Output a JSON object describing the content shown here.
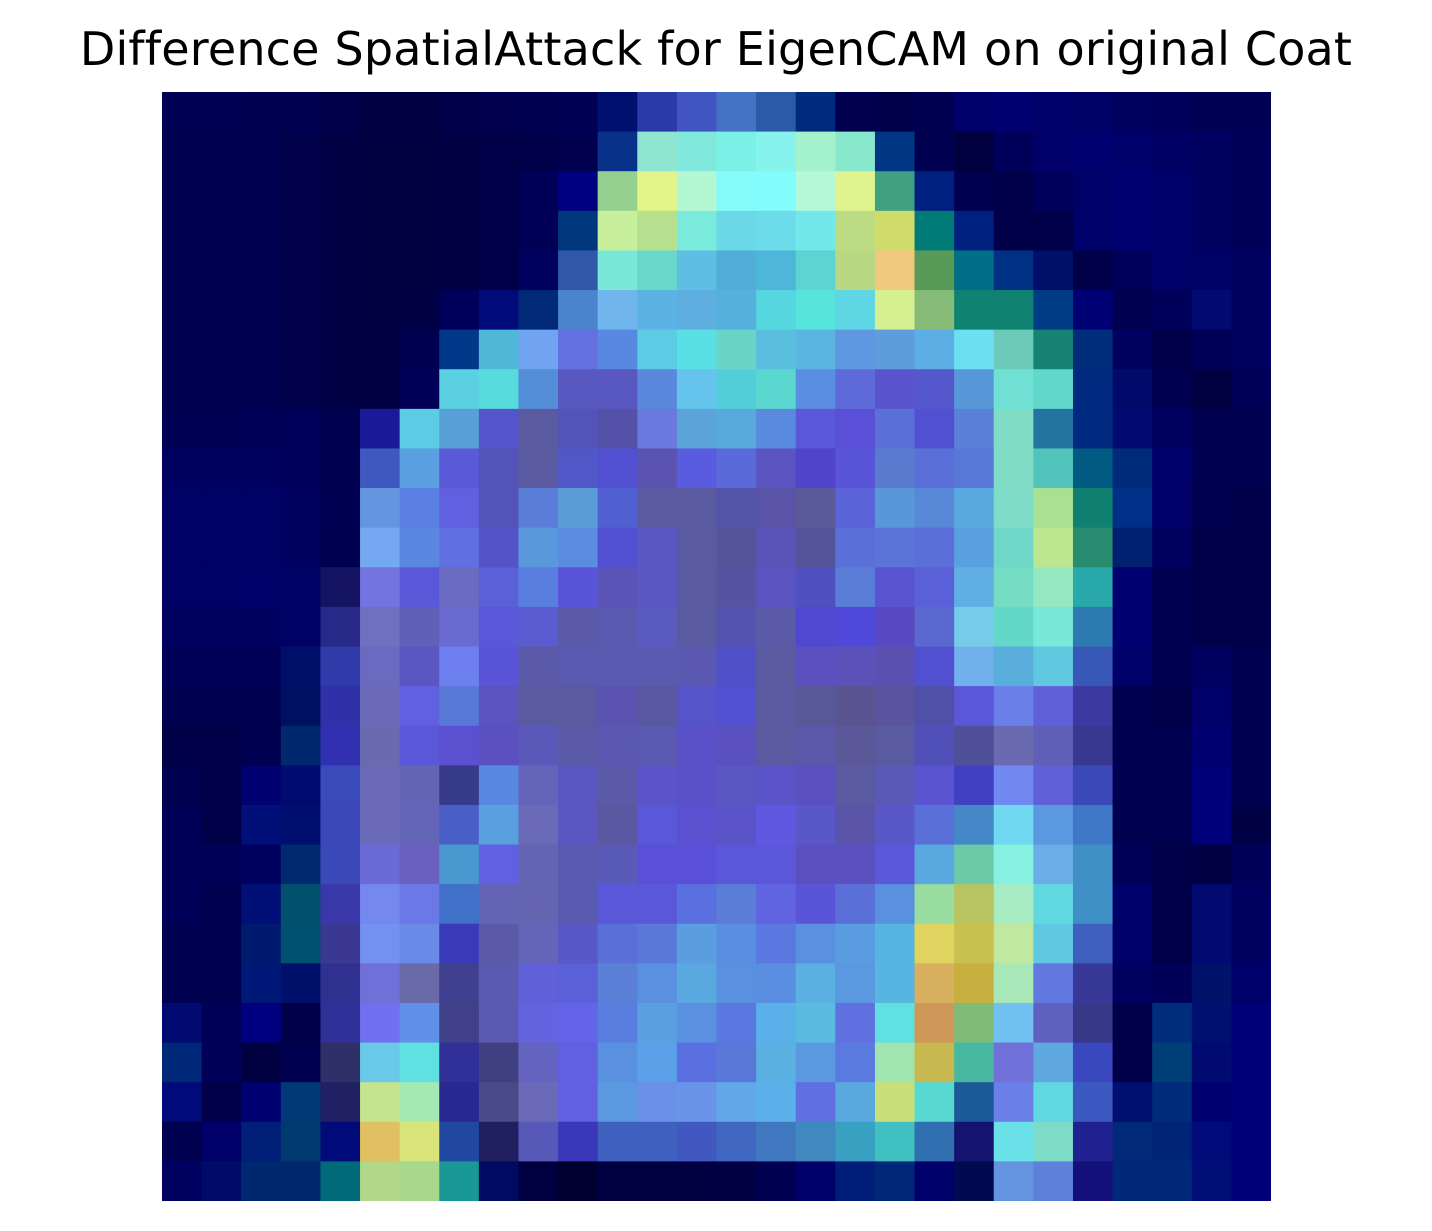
{
  "chart_data": {
    "type": "heatmap",
    "title": "Difference SpatialAttack for EigenCAM on original Coat",
    "axes_visible": false,
    "grid": false,
    "rows": 28,
    "cols": 28,
    "colormap": "jet colormap blended over grayscale image",
    "cells": [
      [
        "#000055",
        "#000055",
        "#000050",
        "#000050",
        "#00004a",
        "#000045",
        "#000045",
        "#00004a",
        "#00004f",
        "#000050",
        "#000055",
        "#00106f",
        "#2a3aa8",
        "#4055c2",
        "#4672c6",
        "#2a5aa8",
        "#002a7e",
        "#00004f",
        "#00004a",
        "#000050",
        "#00006a",
        "#000070",
        "#00006a",
        "#000066",
        "#000060",
        "#00005a",
        "#000055",
        "#000055"
      ],
      [
        "#000050",
        "#000050",
        "#000050",
        "#00004b",
        "#000045",
        "#000040",
        "#000040",
        "#000045",
        "#000048",
        "#00004a",
        "#00004f",
        "#08328a",
        "#8ee6d0",
        "#80e8dc",
        "#7af0e6",
        "#86f4ec",
        "#a4f2cc",
        "#88e8cc",
        "#003684",
        "#000050",
        "#000040",
        "#00005a",
        "#000068",
        "#000070",
        "#00006a",
        "#000064",
        "#000060",
        "#000058"
      ],
      [
        "#000050",
        "#000050",
        "#000050",
        "#00004b",
        "#000045",
        "#000040",
        "#000040",
        "#000045",
        "#000048",
        "#000058",
        "#000080",
        "#96d090",
        "#e2f48a",
        "#b2f8d2",
        "#84fafa",
        "#82fcfc",
        "#b4f8d8",
        "#e0f48e",
        "#40a080",
        "#002080",
        "#000050",
        "#000048",
        "#00005a",
        "#000068",
        "#000070",
        "#00006a",
        "#000060",
        "#000058"
      ],
      [
        "#000050",
        "#000050",
        "#000050",
        "#00004b",
        "#000045",
        "#000040",
        "#000040",
        "#000045",
        "#000048",
        "#000056",
        "#00387e",
        "#c8f09c",
        "#b6e08e",
        "#7aeadc",
        "#6ad8e6",
        "#6cdcea",
        "#72e8ea",
        "#bcdc84",
        "#d0dc6a",
        "#007a76",
        "#002080",
        "#000048",
        "#000048",
        "#00006a",
        "#000070",
        "#00006a",
        "#000060",
        "#000058"
      ],
      [
        "#000050",
        "#000050",
        "#000050",
        "#00004b",
        "#000045",
        "#000040",
        "#000040",
        "#000045",
        "#000048",
        "#00005e",
        "#3058aa",
        "#7ae8d8",
        "#68d8cc",
        "#5ebee4",
        "#52aed6",
        "#4eb6d8",
        "#5cd4d4",
        "#b8d884",
        "#f0c87e",
        "#589a58",
        "#006e86",
        "#003084",
        "#000f6a",
        "#000048",
        "#00005a",
        "#000068",
        "#000066",
        "#000060"
      ],
      [
        "#000050",
        "#000050",
        "#000050",
        "#00004b",
        "#000045",
        "#000040",
        "#000045",
        "#00005a",
        "#000a78",
        "#002a78",
        "#4a84cc",
        "#70b6ec",
        "#5cb2e2",
        "#5eaee0",
        "#56b0dc",
        "#56d6de",
        "#56e4dc",
        "#5ed6e4",
        "#d4f090",
        "#86bc78",
        "#108272",
        "#108272",
        "#003c86",
        "#000075",
        "#000050",
        "#00005a",
        "#000a70",
        "#000060"
      ],
      [
        "#000050",
        "#000050",
        "#000050",
        "#00004b",
        "#000045",
        "#000045",
        "#000050",
        "#00388a",
        "#4fb8d8",
        "#70a4f0",
        "#6470e0",
        "#5888e0",
        "#5ccce4",
        "#58e0e4",
        "#6ad4c6",
        "#5abede",
        "#5ab6de",
        "#5e98e0",
        "#5e9cdc",
        "#5caee4",
        "#6ce0f0",
        "#6ccab8",
        "#158272",
        "#002e7c",
        "#000060",
        "#000048",
        "#000058",
        "#000060"
      ],
      [
        "#000050",
        "#000050",
        "#000050",
        "#00004b",
        "#000045",
        "#000045",
        "#000058",
        "#5ad0e0",
        "#56dcdc",
        "#548ed8",
        "#5858c0",
        "#5858c0",
        "#5a88dc",
        "#64c4ec",
        "#52ced8",
        "#5ad8d0",
        "#5a8ee0",
        "#5e6ad8",
        "#5a54cc",
        "#5558cc",
        "#5898d8",
        "#70e0d4",
        "#62d8cc",
        "#002a80",
        "#000a6a",
        "#000050",
        "#000040",
        "#000058"
      ],
      [
        "#000055",
        "#000055",
        "#000058",
        "#00005a",
        "#000050",
        "#1a1a98",
        "#5ccce4",
        "#5aa0d8",
        "#5454cc",
        "#5a5aa0",
        "#5454b8",
        "#5452a8",
        "#6a78e0",
        "#5aa4da",
        "#58aadc",
        "#5a8ade",
        "#5a58d8",
        "#5a50d8",
        "#5a70d8",
        "#5050d0",
        "#5a80d8",
        "#80dcc4",
        "#2474a0",
        "#002a80",
        "#000a70",
        "#000060",
        "#000050",
        "#000050"
      ],
      [
        "#000060",
        "#000060",
        "#000060",
        "#00005c",
        "#000050",
        "#3e58c0",
        "#5aa0e0",
        "#5a5ad8",
        "#5454b8",
        "#5a5aa0",
        "#5058c8",
        "#5050d0",
        "#5a54b0",
        "#5a5ce0",
        "#5a6ad8",
        "#5a54c0",
        "#5044c8",
        "#5a54d8",
        "#5a7ad0",
        "#5a70d8",
        "#5878d8",
        "#80dcc4",
        "#52c4bc",
        "#005a82",
        "#002a7a",
        "#00006a",
        "#000050",
        "#000050"
      ],
      [
        "#000065",
        "#000065",
        "#000065",
        "#000060",
        "#000052",
        "#6496e0",
        "#5a80e4",
        "#6060e0",
        "#5454b8",
        "#5a7ed8",
        "#5a9cd8",
        "#5060d0",
        "#5a5aa0",
        "#5a5aa0",
        "#5454a8",
        "#5a54a8",
        "#5a5a9a",
        "#5a64d8",
        "#5898d8",
        "#5888d8",
        "#5aa8e0",
        "#7edcc8",
        "#aae094",
        "#108070",
        "#002f88",
        "#000068",
        "#000050",
        "#00004a"
      ],
      [
        "#000065",
        "#000065",
        "#000065",
        "#000060",
        "#000050",
        "#74a8f0",
        "#5a88e0",
        "#6070e0",
        "#5454c8",
        "#5a98dc",
        "#5a8ce0",
        "#5050d0",
        "#5a58c0",
        "#5a5aa0",
        "#54549a",
        "#5a54b8",
        "#54549a",
        "#5a70d8",
        "#5a74d8",
        "#5a70d8",
        "#58a0e0",
        "#70d8c8",
        "#bce690",
        "#288c70",
        "#002070",
        "#000060",
        "#00004a",
        "#000048"
      ],
      [
        "#000065",
        "#000065",
        "#000068",
        "#000065",
        "#141462",
        "#7474e0",
        "#5a58d8",
        "#6a6ac0",
        "#5a60d8",
        "#5a7ee0",
        "#5a54d8",
        "#5a54b8",
        "#5a58c0",
        "#5a5aa0",
        "#5454a0",
        "#5a54c0",
        "#5050c0",
        "#5a7ed8",
        "#5a54d0",
        "#5a60d8",
        "#60aee4",
        "#76dcc4",
        "#94e8c0",
        "#28a8a8",
        "#000070",
        "#000050",
        "#000048",
        "#000048"
      ],
      [
        "#000060",
        "#000060",
        "#000060",
        "#000065",
        "#282888",
        "#7070c0",
        "#6060b8",
        "#6a6ad0",
        "#5a58d8",
        "#5a5cd0",
        "#5a5aa8",
        "#5a5ab0",
        "#5a5ac0",
        "#5a5aa0",
        "#5454b0",
        "#5a5aa8",
        "#5048d0",
        "#5048d8",
        "#5a48c0",
        "#5a68d0",
        "#74cce8",
        "#64d8c8",
        "#78e8d8",
        "#2c7ab0",
        "#000070",
        "#000050",
        "#000048",
        "#00004a"
      ],
      [
        "#000058",
        "#000058",
        "#000058",
        "#00106a",
        "#303aa8",
        "#6a6ac0",
        "#5a58c0",
        "#6e80f0",
        "#5a54d8",
        "#5a5aa8",
        "#5a5ab0",
        "#5a5ab0",
        "#5a5ab0",
        "#5a58b0",
        "#5050c8",
        "#5a5aa0",
        "#5a50c0",
        "#5a52b8",
        "#5a50b0",
        "#5050d0",
        "#70b0ec",
        "#5aaedc",
        "#60c8e0",
        "#3858b8",
        "#00006a",
        "#000050",
        "#000060",
        "#000050"
      ],
      [
        "#000050",
        "#000050",
        "#000050",
        "#001060",
        "#3030a8",
        "#6a6ab8",
        "#6060e0",
        "#5878d8",
        "#5a54c0",
        "#5a5aa0",
        "#5a5aa0",
        "#5a54b0",
        "#5a58a0",
        "#5654c8",
        "#5050d0",
        "#5a5aa0",
        "#585898",
        "#5a5490",
        "#5a54a0",
        "#5050a8",
        "#5a58d8",
        "#6a80e8",
        "#6060d8",
        "#3c3aa0",
        "#000050",
        "#000048",
        "#000068",
        "#000050"
      ],
      [
        "#000048",
        "#000048",
        "#000050",
        "#00286e",
        "#3030b0",
        "#6a6ab0",
        "#5a58d8",
        "#5a50d0",
        "#5a50c0",
        "#5a58b8",
        "#5a5aa8",
        "#5a58b0",
        "#5a5ab0",
        "#5a50c8",
        "#5a50c0",
        "#5a5aa0",
        "#5a58a8",
        "#5a5898",
        "#5a5aa0",
        "#5050b8",
        "#505098",
        "#6a6ab0",
        "#6060b8",
        "#383890",
        "#000050",
        "#000050",
        "#000070",
        "#000050"
      ],
      [
        "#000050",
        "#000048",
        "#000070",
        "#000b70",
        "#3a4ab8",
        "#6a6ab8",
        "#6464b4",
        "#383a8a",
        "#5888e0",
        "#6464b8",
        "#5a58c0",
        "#5a5aa8",
        "#5a54c8",
        "#5a50c8",
        "#5a58c0",
        "#5a54c8",
        "#5a50c0",
        "#5a5aa0",
        "#5a58b8",
        "#5a54d0",
        "#4040c0",
        "#7088f0",
        "#6060d8",
        "#3a48b8",
        "#000050",
        "#000050",
        "#000078",
        "#000050"
      ],
      [
        "#000058",
        "#000048",
        "#001078",
        "#000f6e",
        "#3a48b8",
        "#6a6ab8",
        "#6464b8",
        "#4a60c8",
        "#5aa0e0",
        "#6a6ab8",
        "#5a58c0",
        "#5a58a0",
        "#5a58d8",
        "#5a50d0",
        "#5a54c8",
        "#6058e0",
        "#5a58c8",
        "#5a54a8",
        "#5a58c8",
        "#5a70d8",
        "#4488c8",
        "#70d8f0",
        "#5a98e0",
        "#4078c8",
        "#000050",
        "#000050",
        "#00007a",
        "#000045"
      ],
      [
        "#000058",
        "#000058",
        "#000060",
        "#002a70",
        "#3a48b8",
        "#6a6ad8",
        "#6a60c0",
        "#4a98d0",
        "#6060e0",
        "#6464b4",
        "#5a5ab0",
        "#5a5ab8",
        "#5a50d8",
        "#5a50d8",
        "#5a58d8",
        "#5a58d8",
        "#5a50c0",
        "#5a50c0",
        "#5a58d8",
        "#5aa8e0",
        "#6ccaa8",
        "#88f0e0",
        "#6aaee8",
        "#4090c8",
        "#000058",
        "#000048",
        "#000045",
        "#000058"
      ],
      [
        "#000058",
        "#000050",
        "#001078",
        "#00506e",
        "#3a38a8",
        "#7488f0",
        "#6a78e8",
        "#4070c8",
        "#6464b4",
        "#6464b0",
        "#5a5ab0",
        "#5a58d8",
        "#5a58d8",
        "#5a70e0",
        "#5a7ed8",
        "#6064e0",
        "#5a54d8",
        "#5a70d8",
        "#5a90e0",
        "#98dca0",
        "#b8c460",
        "#a8ecc4",
        "#60d8e0",
        "#4090c8",
        "#00006a",
        "#000048",
        "#000a70",
        "#000060"
      ],
      [
        "#000050",
        "#000050",
        "#001a70",
        "#005070",
        "#3a3890",
        "#7490f0",
        "#6a8ae8",
        "#3a3ab8",
        "#5a5aa8",
        "#6464b8",
        "#5a58c8",
        "#5a70d8",
        "#5a78d8",
        "#5a9ee0",
        "#5a8ee0",
        "#5a78e0",
        "#5a90e0",
        "#5a9ce0",
        "#58b4e0",
        "#e0d460",
        "#c8c050",
        "#c0e8a0",
        "#60c8e0",
        "#4060c0",
        "#00006a",
        "#000048",
        "#000a70",
        "#000060"
      ],
      [
        "#000050",
        "#000050",
        "#001878",
        "#00106a",
        "#303090",
        "#7070d8",
        "#6a6aa8",
        "#404090",
        "#5a5ab0",
        "#6060d8",
        "#5a60d8",
        "#5a80d8",
        "#5a90e0",
        "#5aa8e0",
        "#5a90e0",
        "#5a8ee0",
        "#5ab0e0",
        "#5a98e0",
        "#58b4e0",
        "#d8b060",
        "#c8b040",
        "#a8e8b8",
        "#6078e0",
        "#383898",
        "#000060",
        "#000058",
        "#00126a",
        "#00006a"
      ],
      [
        "#000a70",
        "#000058",
        "#000080",
        "#000048",
        "#303098",
        "#7070f0",
        "#6090e8",
        "#404088",
        "#5a5ab0",
        "#6464e0",
        "#6464e8",
        "#5a7ee0",
        "#5aa0e0",
        "#5a90e0",
        "#5a78e0",
        "#5ab0e8",
        "#5abae0",
        "#6070e0",
        "#60e0e0",
        "#d09858",
        "#80bc78",
        "#70c0f0",
        "#6060c0",
        "#383888",
        "#000048",
        "#002d7c",
        "#001070",
        "#000078"
      ],
      [
        "#002878",
        "#000058",
        "#000040",
        "#000050",
        "#303068",
        "#6ac8e8",
        "#60e0e0",
        "#303098",
        "#404080",
        "#6464c0",
        "#6060e0",
        "#5a90e0",
        "#5aa0e8",
        "#5a70e0",
        "#5a78d8",
        "#5ab0e0",
        "#5a98e0",
        "#5a7ae0",
        "#a0e4b0",
        "#c8b850",
        "#48b8a0",
        "#7070d8",
        "#60a8e0",
        "#3a48c0",
        "#000048",
        "#003e78",
        "#000a70",
        "#000078"
      ],
      [
        "#000a78",
        "#000048",
        "#000070",
        "#003878",
        "#202064",
        "#c4e490",
        "#a4e8b4",
        "#282890",
        "#4a4a88",
        "#6a6ab8",
        "#6060e0",
        "#5a98e0",
        "#6a90e8",
        "#6a94e8",
        "#60a8e8",
        "#5ab0e8",
        "#6070e0",
        "#5aa8e0",
        "#c8e07a",
        "#58d8d0",
        "#1a5a98",
        "#6a80e8",
        "#60d8e0",
        "#3a58c0",
        "#000f70",
        "#002a7a",
        "#000070",
        "#000078"
      ],
      [
        "#000050",
        "#000068",
        "#002078",
        "#003870",
        "#000a78",
        "#e0c060",
        "#d8e47a",
        "#2048a0",
        "#202060",
        "#5858b8",
        "#3838b8",
        "#4060c0",
        "#4060c0",
        "#4058c0",
        "#4068c0",
        "#4078c0",
        "#4088c0",
        "#38a0c0",
        "#40c0c0",
        "#3070b0",
        "#141470",
        "#6ae0e8",
        "#7cdcc8",
        "#202090",
        "#002a78",
        "#002478",
        "#000a78",
        "#000078"
      ],
      [
        "#000060",
        "#000a68",
        "#00286e",
        "#00286e",
        "#006a7a",
        "#b0d888",
        "#a8d88c",
        "#1a9898",
        "#000a60",
        "#000040",
        "#000030",
        "#000040",
        "#000040",
        "#000040",
        "#000045",
        "#000050",
        "#000068",
        "#001e78",
        "#002878",
        "#00006a",
        "#000a50",
        "#6494e0",
        "#5e80d8",
        "#14107a",
        "#002878",
        "#002878",
        "#000f78",
        "#000078"
      ]
    ]
  }
}
